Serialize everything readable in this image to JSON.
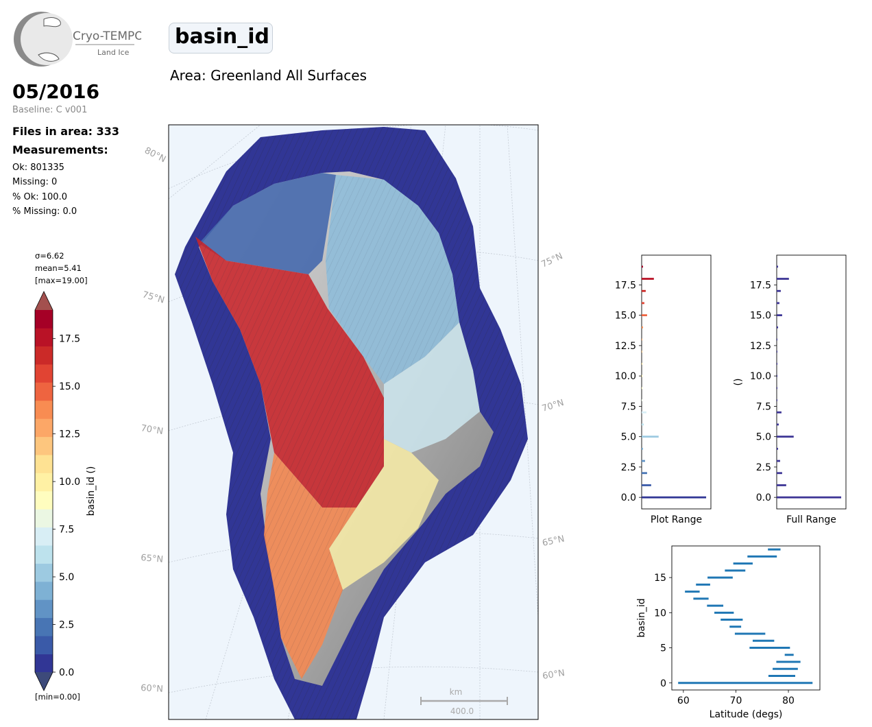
{
  "logo": {
    "line1": "Cryo-TEMPO",
    "line2": "Land Ice"
  },
  "header": {
    "title": "basin_id",
    "area": "Area: Greenland All Surfaces"
  },
  "sidebar": {
    "date": "05/2016",
    "baseline": "Baseline: C v001",
    "files": "Files in area: 333",
    "measurements_heading": "Measurements:",
    "stats": [
      "Ok: 801335",
      "Missing: 0",
      "% Ok: 100.0",
      "% Missing: 0.0"
    ]
  },
  "colorbar": {
    "sigma": "σ=6.62",
    "mean": "mean=5.41",
    "max": "[max=19.00]",
    "min": "[min=0.00]",
    "label": "basin_id ()",
    "vmin": 0,
    "vmax": 19,
    "ticks": [
      "0.0",
      "2.5",
      "5.0",
      "7.5",
      "10.0",
      "12.5",
      "15.0",
      "17.5"
    ],
    "colors": [
      "#313695",
      "#3a5aa8",
      "#4875b4",
      "#6193c5",
      "#7eb1d4",
      "#9dcae1",
      "#bde2ed",
      "#d8eef5",
      "#ebf7e3",
      "#fffdbf",
      "#fff1a4",
      "#fee293",
      "#fdc67e",
      "#fca767",
      "#f88c52",
      "#ee6440",
      "#e14433",
      "#cb2a28",
      "#b91226",
      "#a50026"
    ],
    "under_color": "#3d4a7a",
    "over_color": "#a3504e"
  },
  "map": {
    "lat_labels": [
      "80°N",
      "75°N",
      "75°N",
      "70°N",
      "70°N",
      "65°N",
      "65°N",
      "60°N",
      "60°N"
    ],
    "scale_unit": "km",
    "scale_value": "400.0"
  },
  "chart_data": [
    {
      "type": "bar",
      "orientation": "horizontal",
      "xlabel": "Plot Range",
      "ylabel": "",
      "ylim": [
        -0.95,
        19.95
      ],
      "yticks": [
        "0.0",
        "2.5",
        "5.0",
        "7.5",
        "10.0",
        "12.5",
        "15.0",
        "17.5"
      ],
      "y": [
        0,
        1,
        2,
        3,
        4,
        5,
        6,
        7,
        8,
        9,
        10,
        11,
        12,
        13,
        14,
        15,
        16,
        17,
        18,
        19
      ],
      "values": [
        0.95,
        0.14,
        0.08,
        0.05,
        0.02,
        0.25,
        0.03,
        0.07,
        0.01,
        0.01,
        0.01,
        0.01,
        0.01,
        0.01,
        0.02,
        0.08,
        0.04,
        0.06,
        0.18,
        0.02
      ],
      "color_by_value": true
    },
    {
      "type": "bar",
      "orientation": "horizontal",
      "xlabel": "Full Range",
      "ylabel": "()",
      "ylim": [
        -0.95,
        19.95
      ],
      "yticks": [
        "0.0",
        "2.5",
        "5.0",
        "7.5",
        "10.0",
        "12.5",
        "15.0",
        "17.5"
      ],
      "y": [
        0,
        1,
        2,
        3,
        4,
        5,
        6,
        7,
        8,
        9,
        10,
        11,
        12,
        13,
        14,
        15,
        16,
        17,
        18,
        19
      ],
      "values": [
        0.95,
        0.14,
        0.08,
        0.05,
        0.02,
        0.25,
        0.03,
        0.07,
        0.01,
        0.01,
        0.01,
        0.01,
        0.01,
        0.01,
        0.02,
        0.08,
        0.04,
        0.06,
        0.18,
        0.02
      ],
      "color": "#3d3595"
    },
    {
      "type": "range",
      "xlabel": "Latitude (degs)",
      "ylabel": "basin_id",
      "xlim": [
        57.8,
        86
      ],
      "ylim": [
        -1,
        19.5
      ],
      "xticks": [
        "60",
        "70",
        "80"
      ],
      "yticks": [
        "0",
        "5",
        "10",
        "15"
      ],
      "color": "#1f77b4",
      "ranges": [
        {
          "y": 0,
          "from": 59.0,
          "to": 84.6
        },
        {
          "y": 1,
          "from": 76.2,
          "to": 81.3
        },
        {
          "y": 2,
          "from": 77.0,
          "to": 81.8
        },
        {
          "y": 3,
          "from": 77.7,
          "to": 82.3
        },
        {
          "y": 4,
          "from": 79.3,
          "to": 81.0
        },
        {
          "y": 5,
          "from": 72.6,
          "to": 80.3
        },
        {
          "y": 6,
          "from": 73.2,
          "to": 77.3
        },
        {
          "y": 7,
          "from": 69.8,
          "to": 75.6
        },
        {
          "y": 8,
          "from": 68.8,
          "to": 71.0
        },
        {
          "y": 9,
          "from": 67.1,
          "to": 71.3
        },
        {
          "y": 10,
          "from": 65.9,
          "to": 69.6
        },
        {
          "y": 11,
          "from": 64.5,
          "to": 67.6
        },
        {
          "y": 12,
          "from": 61.9,
          "to": 64.8
        },
        {
          "y": 13,
          "from": 60.3,
          "to": 63.1
        },
        {
          "y": 14,
          "from": 62.4,
          "to": 65.1
        },
        {
          "y": 15,
          "from": 64.6,
          "to": 69.4
        },
        {
          "y": 16,
          "from": 67.9,
          "to": 71.8
        },
        {
          "y": 17,
          "from": 69.5,
          "to": 73.2
        },
        {
          "y": 18,
          "from": 72.2,
          "to": 77.8
        },
        {
          "y": 19,
          "from": 76.1,
          "to": 78.5
        }
      ]
    }
  ]
}
